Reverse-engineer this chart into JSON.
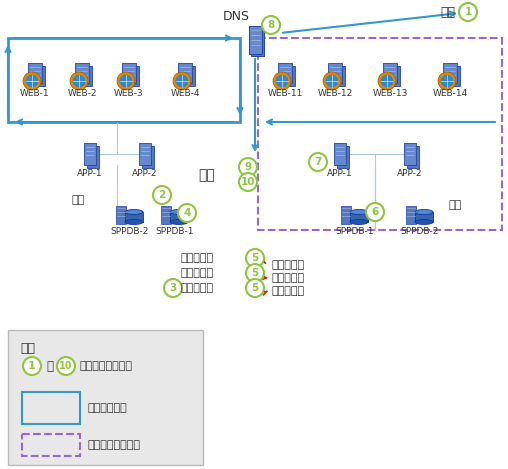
{
  "bg_color": "#ffffff",
  "step_circle_color": "#8dc63f",
  "arrow_blue": "#3399cc",
  "arrow_red": "#cc2200",
  "box_blue": "#3399cc",
  "box_purple_dashed": "#9966cc",
  "legend_bg": "#e8e8e8",
  "left_web_nodes": [
    "WEB-1",
    "WEB-2",
    "WEB-3",
    "WEB-4"
  ],
  "right_web_nodes": [
    "WEB-11",
    "WEB-12",
    "WEB-13",
    "WEB-14"
  ],
  "left_app_nodes": [
    "APP-1",
    "APP-2"
  ],
  "right_app_nodes": [
    "APP-1",
    "APP-2"
  ],
  "left_db_nodes": [
    "SPPDB-2",
    "SPPDB-1"
  ],
  "right_db_nodes": [
    "SPPDB-1",
    "SPPDB-2"
  ],
  "db_labels_left": [
    "配置数据库",
    "内容数据库",
    "服务数据库"
  ],
  "db_labels_right": [
    "配置数据库",
    "内容数据库",
    "服务数据库"
  ],
  "legend_title": "图例",
  "legend_step": "更新过程中的步骤",
  "legend_lb": "负载平衡轮换",
  "legend_group": "步骤的分组指示符",
  "start_text": "开始",
  "end_text": "结束",
  "dns_text": "DNS",
  "mirror_text": "镜像"
}
